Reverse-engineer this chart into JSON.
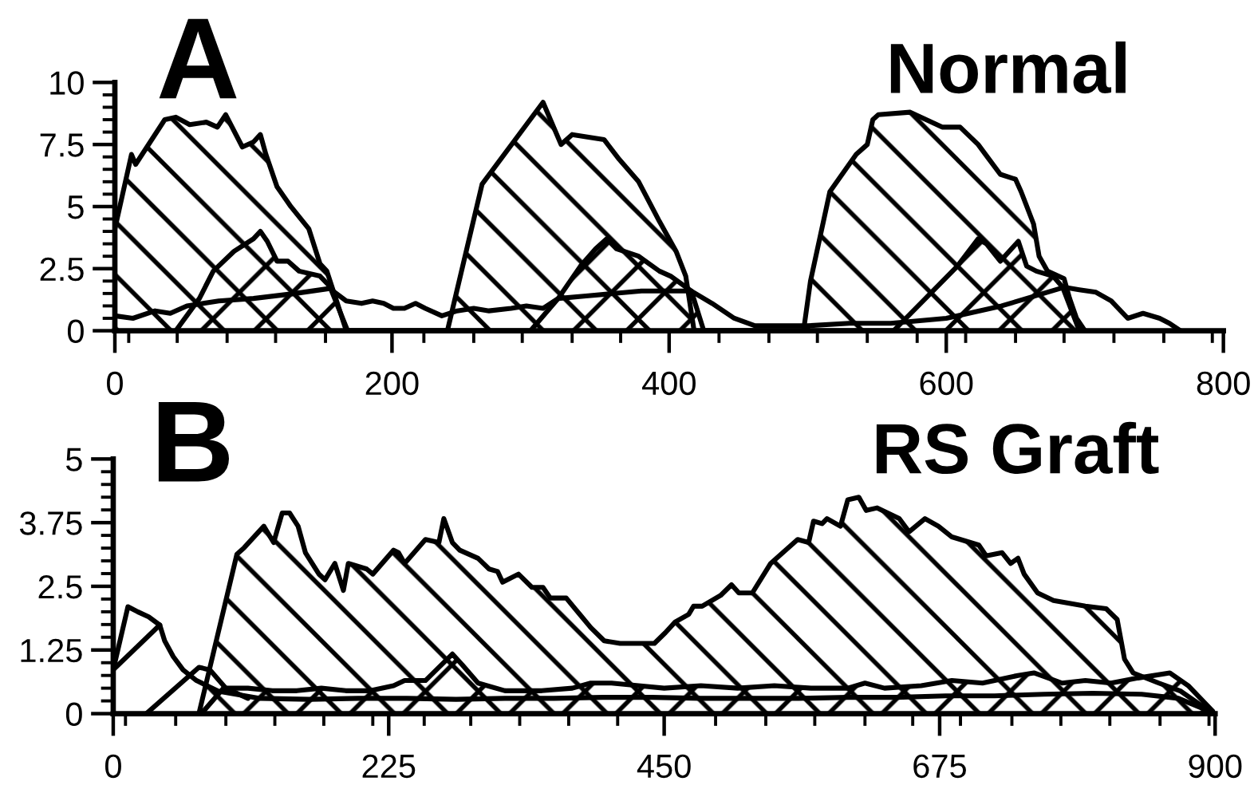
{
  "chart_data": [
    {
      "type": "area",
      "title": "Normal",
      "annotations": [
        "A"
      ],
      "xlim": [
        0,
        800
      ],
      "xticks": [
        0,
        {
          "value": 10,
          "label": null
        },
        {
          "value": 45,
          "label": null
        },
        {
          "value": 81,
          "label": null
        },
        {
          "value": 116,
          "label": null
        },
        {
          "value": 152,
          "label": null
        },
        200,
        {
          "value": 223,
          "label": null
        },
        {
          "value": 259,
          "label": null
        },
        {
          "value": 294,
          "label": null
        },
        {
          "value": 330,
          "label": null
        },
        {
          "value": 365,
          "label": null
        },
        400,
        {
          "value": 436,
          "label": null
        },
        {
          "value": 472,
          "label": null
        },
        {
          "value": 507,
          "label": null
        },
        {
          "value": 543,
          "label": null
        },
        {
          "value": 579,
          "label": null
        },
        600,
        {
          "value": 614,
          "label": null
        },
        {
          "value": 650,
          "label": null
        },
        {
          "value": 685,
          "label": null
        },
        {
          "value": 721,
          "label": null
        },
        {
          "value": 757,
          "label": null
        },
        {
          "value": 792,
          "label": null
        },
        800
      ],
      "ylim": [
        0,
        10
      ],
      "yticks": [
        0,
        {
          "value": 0.5,
          "label": null
        },
        {
          "value": 1,
          "label": null
        },
        {
          "value": 1.5,
          "label": null
        },
        {
          "value": 2,
          "label": null
        },
        2.5,
        {
          "value": 3,
          "label": null
        },
        {
          "value": 3.5,
          "label": null
        },
        {
          "value": 4,
          "label": null
        },
        {
          "value": 4.5,
          "label": null
        },
        5,
        {
          "value": 5.5,
          "label": null
        },
        {
          "value": 6,
          "label": null
        },
        {
          "value": 6.5,
          "label": null
        },
        {
          "value": 7,
          "label": null
        },
        7.5,
        {
          "value": 8,
          "label": null
        },
        {
          "value": 8.5,
          "label": null
        },
        {
          "value": 9,
          "label": null
        },
        {
          "value": 9.5,
          "label": null
        },
        10
      ],
      "series": [
        {
          "color": "#000000",
          "x": [
            0,
            12,
            15,
            36,
            44,
            54,
            66,
            74,
            80,
            92,
            100,
            105,
            109,
            117,
            127,
            140,
            148,
            153,
            167,
            240,
            265,
            309,
            322,
            330,
            341,
            353,
            364,
            378,
            393,
            405,
            412,
            418,
            497,
            502,
            516,
            535,
            543,
            547,
            551,
            574,
            597,
            610,
            623,
            631,
            639,
            650,
            654,
            663,
            667,
            673,
            685,
            689,
            694,
            700
          ],
          "values": [
            4.1,
            7.1,
            6.7,
            8.5,
            8.6,
            8.3,
            8.4,
            8.2,
            8.7,
            7.4,
            7.6,
            7.9,
            7.1,
            5.8,
            5.0,
            4.1,
            2.7,
            2.4,
            0,
            0,
            5.9,
            9.2,
            7.5,
            7.9,
            7.8,
            7.7,
            6.9,
            6.0,
            4.4,
            3.2,
            2.2,
            0,
            0,
            2.0,
            5.6,
            7.1,
            7.5,
            8.5,
            8.7,
            8.8,
            8.2,
            8.2,
            7.5,
            6.9,
            6.3,
            6.1,
            5.6,
            4.3,
            3.0,
            2.4,
            2.1,
            1.3,
            0.5,
            0
          ]
        },
        {
          "color": "#000000",
          "x": [
            44,
            61,
            71,
            86,
            100,
            105,
            110,
            117,
            125,
            133,
            148,
            155,
            168,
            300,
            320,
            336,
            347,
            355,
            362,
            378,
            393,
            401,
            416,
            425,
            562,
            585,
            608,
            623,
            629,
            639,
            652,
            658,
            665,
            677,
            684,
            696
          ],
          "values": [
            0,
            1.3,
            2.4,
            3.2,
            3.7,
            4.0,
            3.6,
            2.8,
            2.8,
            2.4,
            2.2,
            1.8,
            0,
            0,
            1.3,
            2.6,
            3.3,
            3.7,
            3.3,
            3.0,
            2.4,
            2.2,
            1.6,
            0,
            0,
            1.3,
            2.6,
            3.7,
            3.5,
            2.8,
            3.6,
            2.6,
            2.4,
            2.2,
            1.75,
            0
          ]
        },
        {
          "type": "line",
          "color": "#000000",
          "x": [
            0,
            13,
            29,
            40,
            52,
            75,
            100,
            130,
            155,
            167,
            178,
            186,
            194,
            201,
            209,
            217,
            224,
            236,
            247,
            259,
            270,
            286,
            297,
            309,
            320,
            340,
            380,
            416,
            431,
            447,
            462,
            480,
            500,
            530,
            560,
            600,
            640,
            685,
            696,
            708,
            719,
            731,
            742,
            754,
            761,
            769
          ],
          "values": [
            0.6,
            0.5,
            0.8,
            0.7,
            1.0,
            1.2,
            1.3,
            1.5,
            1.7,
            1.2,
            1.1,
            1.2,
            1.1,
            0.9,
            0.9,
            1.1,
            0.9,
            0.6,
            0.8,
            0.9,
            0.8,
            0.9,
            1.0,
            0.9,
            1.3,
            1.4,
            1.6,
            1.6,
            1.1,
            0.5,
            0.2,
            0.2,
            0.2,
            0.3,
            0.3,
            0.5,
            1.0,
            1.75,
            1.65,
            1.55,
            1.2,
            0.5,
            0.7,
            0.5,
            0.3,
            0
          ]
        }
      ]
    },
    {
      "type": "area",
      "title": "RS Graft",
      "annotations": [
        "B"
      ],
      "xlim": [
        0,
        900
      ],
      "xticks": [
        0,
        {
          "value": 10,
          "label": null
        },
        {
          "value": 51,
          "label": null
        },
        {
          "value": 92,
          "label": null
        },
        {
          "value": 132,
          "label": null
        },
        {
          "value": 172,
          "label": null
        },
        {
          "value": 212,
          "label": null
        },
        225,
        {
          "value": 254,
          "label": null
        },
        {
          "value": 292,
          "label": null
        },
        {
          "value": 332,
          "label": null
        },
        {
          "value": 372,
          "label": null
        },
        {
          "value": 412,
          "label": null
        },
        450,
        {
          "value": 492,
          "label": null
        },
        {
          "value": 533,
          "label": null
        },
        {
          "value": 573,
          "label": null
        },
        {
          "value": 614,
          "label": null
        },
        {
          "value": 653,
          "label": null
        },
        675,
        {
          "value": 692,
          "label": null
        },
        {
          "value": 734,
          "label": null
        },
        {
          "value": 774,
          "label": null
        },
        {
          "value": 814,
          "label": null
        },
        {
          "value": 855,
          "label": null
        },
        {
          "value": 895,
          "label": null
        },
        900
      ],
      "ylim": [
        0,
        5
      ],
      "yticks": [
        0,
        {
          "value": 0.25,
          "label": null
        },
        {
          "value": 0.5,
          "label": null
        },
        {
          "value": 0.75,
          "label": null
        },
        {
          "value": 1,
          "label": null
        },
        1.25,
        {
          "value": 1.5,
          "label": null
        },
        {
          "value": 1.75,
          "label": null
        },
        {
          "value": 2,
          "label": null
        },
        {
          "value": 2.25,
          "label": null
        },
        2.5,
        {
          "value": 2.75,
          "label": null
        },
        {
          "value": 3,
          "label": null
        },
        {
          "value": 3.25,
          "label": null
        },
        {
          "value": 3.5,
          "label": null
        },
        3.75,
        {
          "value": 4,
          "label": null
        },
        {
          "value": 4.25,
          "label": null
        },
        {
          "value": 4.5,
          "label": null
        },
        {
          "value": 4.75,
          "label": null
        },
        5
      ],
      "series": [
        {
          "color": "#000000",
          "x": [
            70,
            101,
            107,
            123,
            131,
            138,
            144,
            151,
            157,
            168,
            173,
            181,
            188,
            192,
            207,
            212,
            229,
            233,
            238,
            255,
            266,
            270,
            277,
            283,
            298,
            307,
            314,
            318,
            331,
            342,
            351,
            357,
            370,
            381,
            390,
            401,
            414,
            442,
            451,
            459,
            470,
            474,
            481,
            496,
            505,
            511,
            522,
            537,
            559,
            568,
            572,
            579,
            583,
            594,
            600,
            609,
            615,
            624,
            642,
            650,
            663,
            674,
            685,
            707,
            713,
            726,
            733,
            739,
            744,
            755,
            768,
            794,
            811,
            820,
            826,
            833,
            854,
            872,
            894,
            900
          ],
          "values": [
            0,
            3.13,
            3.26,
            3.68,
            3.36,
            3.94,
            3.94,
            3.68,
            3.16,
            2.74,
            2.63,
            2.95,
            2.42,
            2.95,
            2.84,
            2.74,
            3.21,
            3.16,
            2.95,
            3.42,
            3.36,
            3.83,
            3.36,
            3.21,
            3.05,
            2.84,
            2.79,
            2.58,
            2.74,
            2.48,
            2.48,
            2.27,
            2.27,
            1.95,
            1.69,
            1.43,
            1.38,
            1.38,
            1.59,
            1.8,
            1.95,
            2.11,
            2.11,
            2.32,
            2.53,
            2.37,
            2.37,
            2.95,
            3.42,
            3.36,
            3.78,
            3.73,
            3.83,
            3.68,
            4.2,
            4.25,
            3.99,
            4.04,
            3.83,
            3.57,
            3.83,
            3.68,
            3.47,
            3.31,
            3.1,
            3.16,
            2.95,
            3.05,
            2.74,
            2.37,
            2.22,
            2.11,
            2.06,
            1.85,
            1.07,
            0.8,
            0.6,
            0.44,
            0.07,
            0
          ]
        },
        {
          "color": "#000000",
          "x": [
            72,
            90,
            110,
            130,
            150,
            170,
            190,
            210,
            229,
            238,
            255,
            277,
            285,
            298,
            320,
            350,
            375,
            390,
            407,
            429,
            450,
            480,
            510,
            540,
            570,
            600,
            614,
            630,
            660,
            685,
            710,
            739,
            752,
            775,
            794,
            815,
            837,
            863,
            878,
            900
          ],
          "values": [
            0,
            0.5,
            0.5,
            0.45,
            0.45,
            0.5,
            0.45,
            0.45,
            0.55,
            0.65,
            0.65,
            1.17,
            0.96,
            0.6,
            0.45,
            0.45,
            0.5,
            0.6,
            0.6,
            0.55,
            0.5,
            0.55,
            0.5,
            0.55,
            0.5,
            0.5,
            0.6,
            0.5,
            0.55,
            0.65,
            0.6,
            0.75,
            0.8,
            0.6,
            0.65,
            0.6,
            0.7,
            0.8,
            0.55,
            0
          ]
        },
        {
          "type": "line",
          "color": "#000000",
          "x": [
            0,
            12,
            20,
            29,
            38,
            42,
            49,
            57,
            68,
            86,
            120,
            160,
            200,
            240,
            280,
            320,
            360,
            400,
            440,
            480,
            520,
            560,
            600,
            640,
            680,
            720,
            760,
            800,
            840,
            870,
            900
          ],
          "values": [
            0.86,
            2.1,
            2.0,
            1.9,
            1.74,
            1.43,
            1.12,
            0.86,
            0.65,
            0.44,
            0.3,
            0.28,
            0.3,
            0.3,
            0.28,
            0.3,
            0.3,
            0.32,
            0.32,
            0.3,
            0.3,
            0.3,
            0.32,
            0.32,
            0.35,
            0.35,
            0.38,
            0.4,
            0.38,
            0.3,
            0
          ]
        },
        {
          "type": "line",
          "color": "#000000",
          "x": [
            0,
            38
          ],
          "values": [
            0.86,
            1.74
          ]
        },
        {
          "type": "line",
          "color": "#000000",
          "x": [
            27,
            70,
            79,
            92,
            110
          ],
          "values": [
            0,
            0.91,
            0.86,
            0.5,
            0.3
          ]
        }
      ]
    }
  ]
}
